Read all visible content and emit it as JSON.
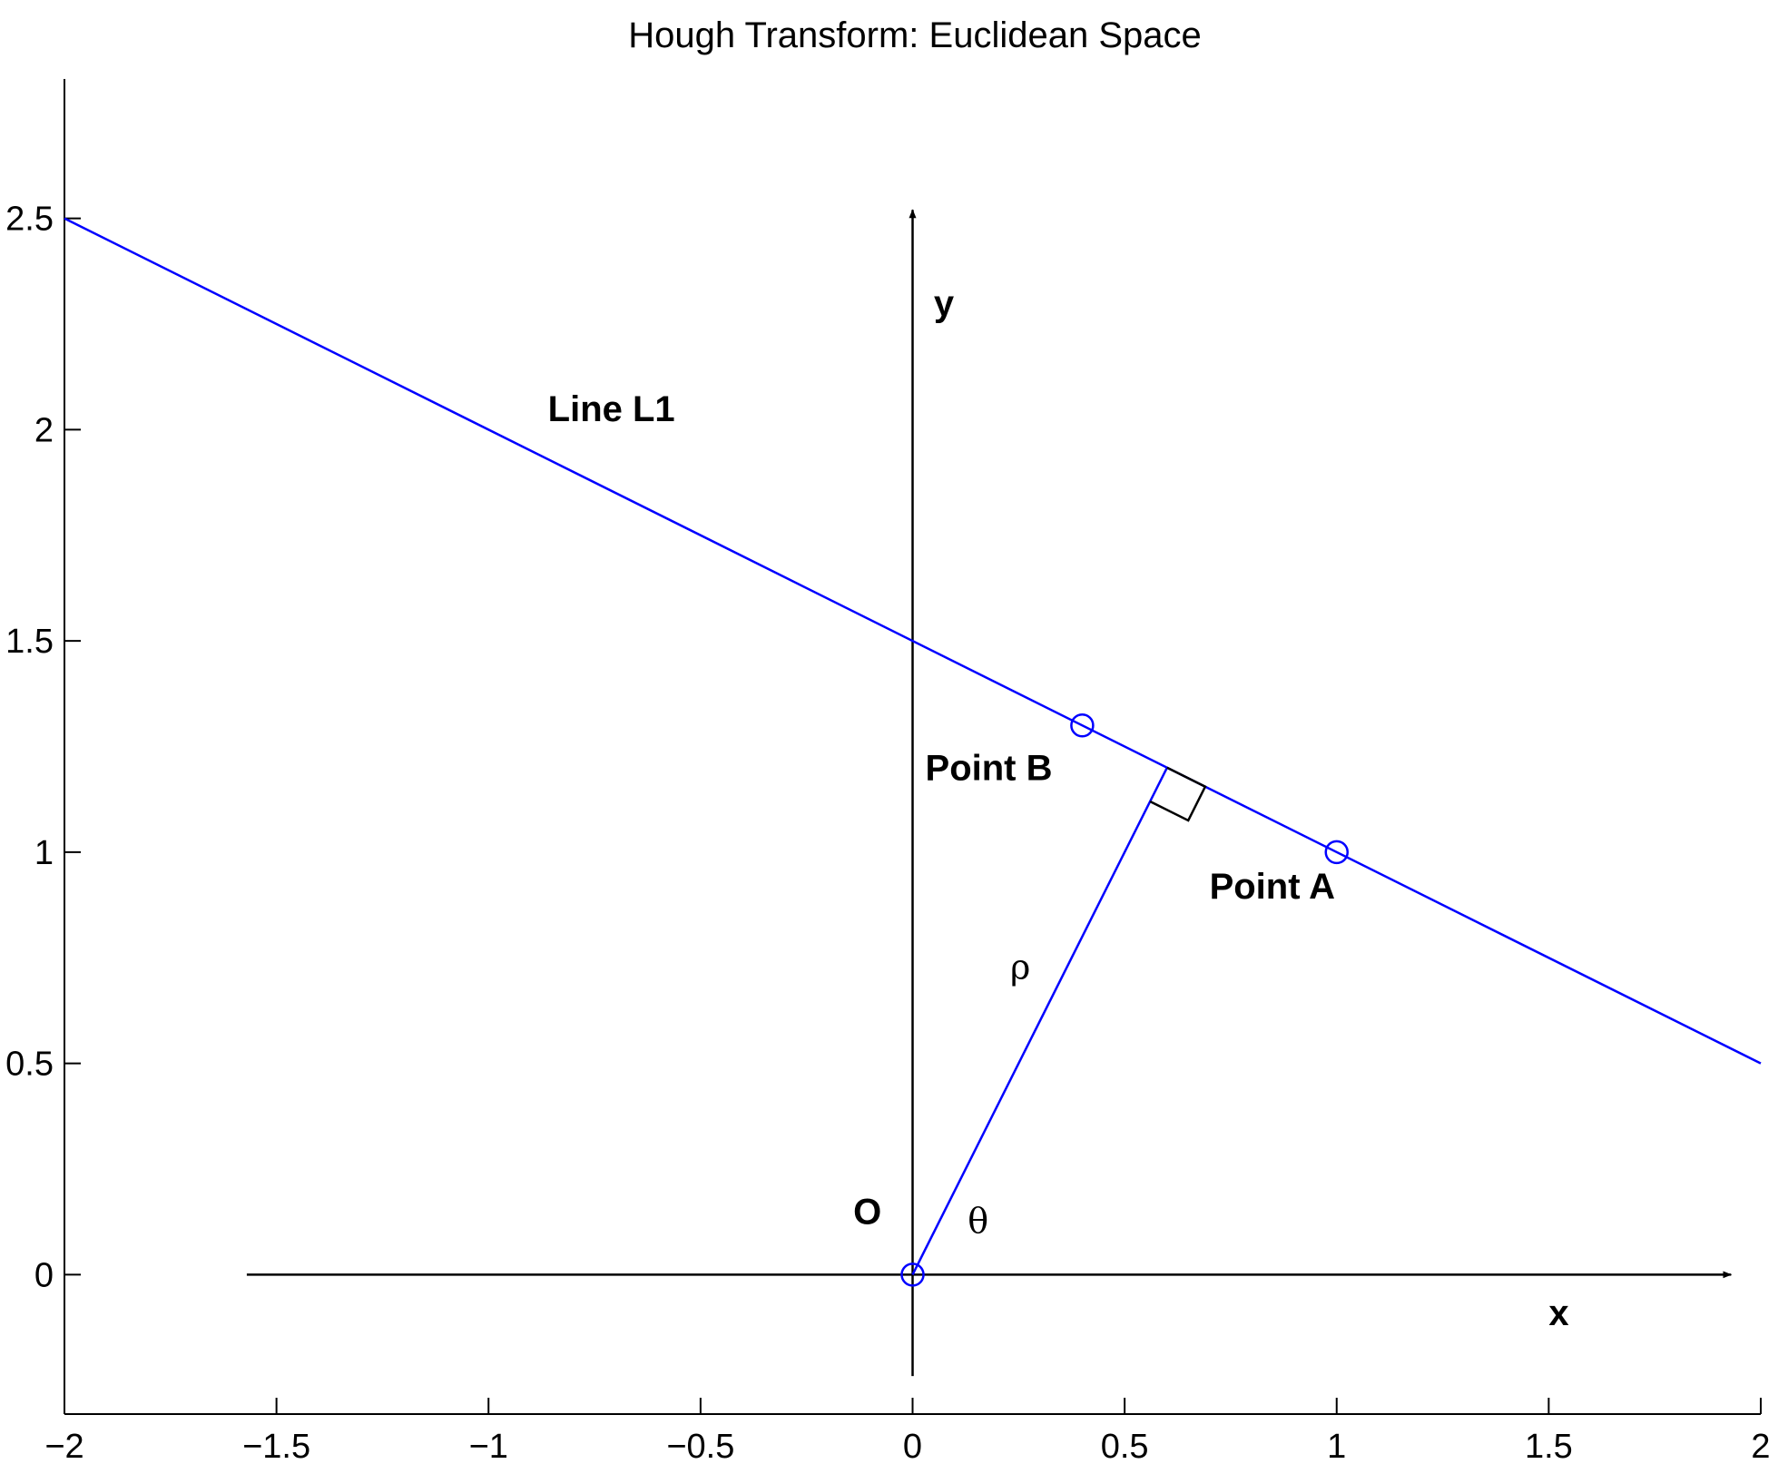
{
  "chart_data": {
    "type": "line",
    "title": "Hough Transform: Euclidean Space",
    "xlim": [
      -2,
      2
    ],
    "ylim": [
      -0.33,
      2.83
    ],
    "xticks": [
      -2,
      -1.5,
      -1,
      -0.5,
      0,
      0.5,
      1,
      1.5,
      2
    ],
    "xtick_labels": [
      "−2",
      "−1.5",
      "−1",
      "−0.5",
      "0",
      "0.5",
      "1",
      "1.5",
      "2"
    ],
    "yticks": [
      0,
      0.5,
      1,
      1.5,
      2,
      2.5
    ],
    "ytick_labels": [
      "0",
      "0.5",
      "1",
      "1.5",
      "2",
      "2.5"
    ],
    "grid": false,
    "colors": {
      "line": "#0000ff",
      "axes": "#000000"
    },
    "line_L1": {
      "x": [
        -2,
        2
      ],
      "y": [
        2.5,
        0.5
      ]
    },
    "rho_segment": {
      "x": [
        0,
        0.6
      ],
      "y": [
        0,
        1.2
      ]
    },
    "right_angle_marker": {
      "x": [
        0.56,
        0.65,
        0.69,
        0.6
      ],
      "y": [
        1.12,
        1.075,
        1.155,
        1.2
      ]
    },
    "points": {
      "x": [
        0,
        0.4,
        1
      ],
      "y": [
        0,
        1.3,
        1
      ]
    },
    "x_axis_arrow": {
      "x": [
        -1.57,
        1.93
      ],
      "y": [
        0,
        0
      ]
    },
    "y_axis_arrow": {
      "x": [
        0,
        0
      ],
      "y": [
        -0.24,
        2.52
      ]
    },
    "annotations": [
      {
        "text": "Line L1",
        "x": -0.86,
        "y": 2.02,
        "style": "bold"
      },
      {
        "text": "y",
        "x": 0.05,
        "y": 2.27,
        "style": "bold"
      },
      {
        "text": "Point B",
        "x": 0.03,
        "y": 1.17,
        "style": "bold"
      },
      {
        "text": "Point A",
        "x": 0.7,
        "y": 0.89,
        "style": "bold"
      },
      {
        "text": "ρ",
        "x": 0.23,
        "y": 0.7,
        "style": "greek"
      },
      {
        "text": "O",
        "x": -0.14,
        "y": 0.12,
        "style": "bold"
      },
      {
        "text": "θ",
        "x": 0.13,
        "y": 0.1,
        "style": "greek"
      },
      {
        "text": "x",
        "x": 1.5,
        "y": -0.12,
        "style": "bold"
      }
    ]
  }
}
